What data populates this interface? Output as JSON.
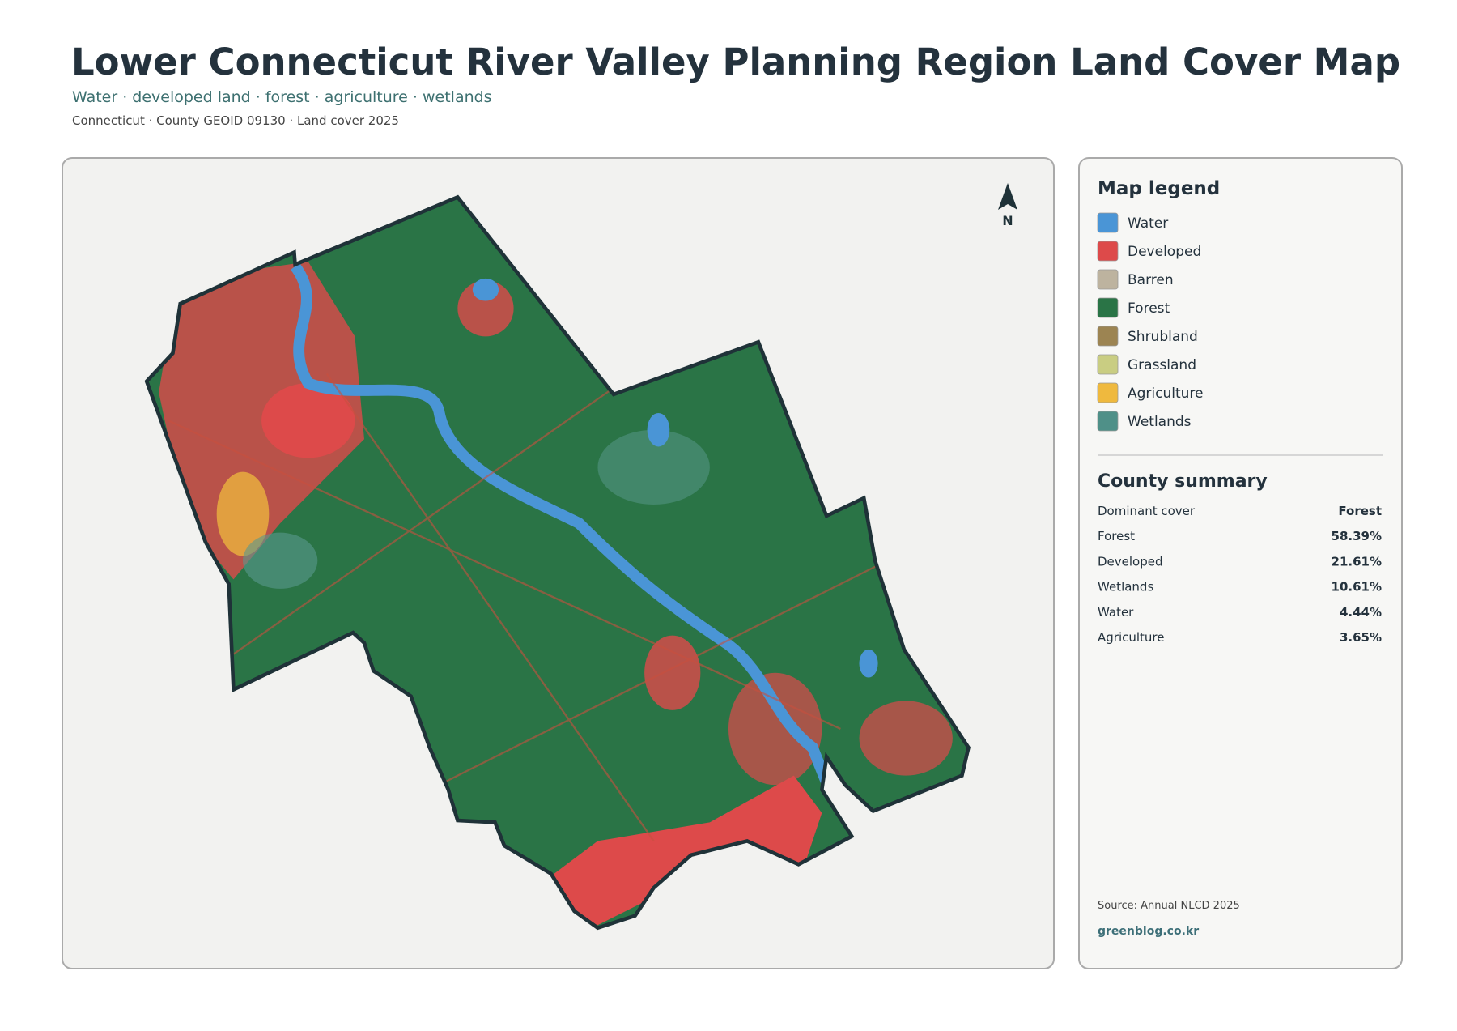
{
  "header": {
    "title": "Lower Connecticut River Valley Planning Region Land Cover Map",
    "subtitle": "Water · developed land · forest · agriculture · wetlands",
    "meta": "Connecticut · County GEOID 09130 · Land cover 2025"
  },
  "map": {
    "north_label": "N"
  },
  "legend": {
    "title": "Map legend",
    "items": [
      "Water",
      "Developed",
      "Barren",
      "Forest",
      "Shrubland",
      "Grassland",
      "Agriculture",
      "Wetlands"
    ]
  },
  "summary": {
    "title": "County summary",
    "rows": [
      [
        "Dominant cover",
        "Forest"
      ],
      [
        "Forest",
        "58.39%"
      ],
      [
        "Developed",
        "21.61%"
      ],
      [
        "Wetlands",
        "10.61%"
      ],
      [
        "Water",
        "4.44%"
      ],
      [
        "Agriculture",
        "3.65%"
      ]
    ]
  },
  "footer": {
    "source": "Source: Annual NLCD 2025",
    "site": "greenblog.co.kr"
  }
}
